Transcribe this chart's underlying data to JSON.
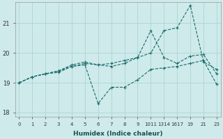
{
  "xlabel": "Humidex (Indice chaleur)",
  "background_color": "#ceeaea",
  "grid_color": "#aed4d4",
  "line_color": "#1a6b6b",
  "xtick_positions": [
    0,
    1,
    2,
    3,
    4,
    5,
    6,
    7,
    8,
    9,
    10,
    11,
    12,
    13,
    14,
    15
  ],
  "xtick_labels": [
    "0",
    "1",
    "2",
    "3",
    "4",
    "5",
    "6",
    "7",
    "8",
    "9",
    "1011",
    "1314",
    "1617",
    "19",
    "21",
    "23"
  ],
  "xlim": [
    -0.3,
    15.3
  ],
  "ylim": [
    17.85,
    21.7
  ],
  "yticks": [
    18,
    19,
    20,
    21
  ],
  "line_bottom_x": [
    0,
    1,
    2,
    3,
    4,
    5,
    6,
    7,
    8,
    9,
    10,
    11,
    12,
    13,
    14,
    15
  ],
  "line_bottom_y": [
    19.0,
    19.2,
    19.3,
    19.35,
    19.55,
    19.6,
    18.3,
    18.85,
    18.85,
    19.1,
    19.45,
    19.5,
    19.55,
    19.65,
    19.75,
    18.95
  ],
  "line_mid_x": [
    0,
    1,
    2,
    3,
    4,
    5,
    6,
    7,
    8,
    9,
    10,
    11,
    12,
    13,
    14,
    15
  ],
  "line_mid_y": [
    19.0,
    19.2,
    19.3,
    19.4,
    19.55,
    19.65,
    19.6,
    19.65,
    19.75,
    19.85,
    20.75,
    19.85,
    19.65,
    19.9,
    19.95,
    19.3
  ],
  "line_top_x": [
    0,
    1,
    2,
    3,
    4,
    5,
    6,
    7,
    8,
    9,
    10,
    11,
    12,
    13,
    14,
    15
  ],
  "line_top_y": [
    19.0,
    19.2,
    19.3,
    19.4,
    19.6,
    19.7,
    19.6,
    19.55,
    19.65,
    19.85,
    20.0,
    20.75,
    20.85,
    21.6,
    19.7,
    19.45
  ]
}
